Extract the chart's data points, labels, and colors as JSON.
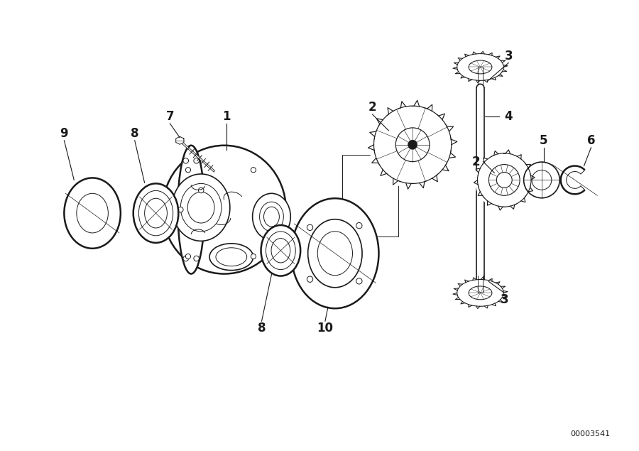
{
  "bg_color": "#ffffff",
  "line_color": "#1a1a1a",
  "fig_width": 9.0,
  "fig_height": 6.35,
  "dpi": 100,
  "part_number": "00003541"
}
